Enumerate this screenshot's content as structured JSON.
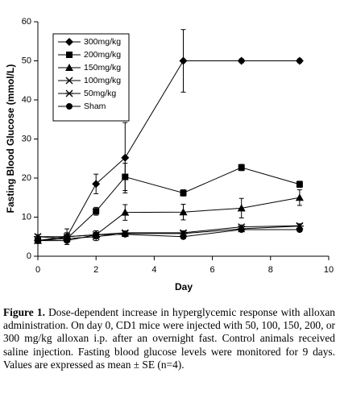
{
  "chart_data": {
    "type": "line",
    "ylabel": "Fasting Blood Glucose (mmol/L)",
    "xlabel": "Day",
    "x": [
      0,
      1,
      2,
      3,
      5,
      7,
      9
    ],
    "xlim": [
      0,
      10
    ],
    "xticks": [
      0,
      2,
      4,
      6,
      8,
      10
    ],
    "ylim": [
      0,
      60
    ],
    "yticks": [
      0,
      10,
      20,
      30,
      40,
      50,
      60
    ],
    "legend": "top-left",
    "series": [
      {
        "name": "300mg/kg",
        "color": "#000000",
        "marker": "diamond",
        "values": [
          4,
          5,
          18.5,
          25.2,
          50,
          50,
          50
        ],
        "errors": [
          0.5,
          1,
          2.5,
          9,
          8,
          0.5,
          0.5
        ]
      },
      {
        "name": "200mg/kg",
        "color": "#000000",
        "marker": "square",
        "values": [
          4,
          4.5,
          11.5,
          20.3,
          16.2,
          22.7,
          18.4
        ],
        "errors": [
          0.5,
          1,
          1,
          3.5,
          0.8,
          0.8,
          0.8
        ]
      },
      {
        "name": "150mg/kg",
        "color": "#000000",
        "marker": "triangle",
        "values": [
          4,
          5,
          5.5,
          11.2,
          11.3,
          12.3,
          15
        ],
        "errors": [
          0.5,
          2,
          1,
          2,
          2,
          2.5,
          2
        ]
      },
      {
        "name": "100mg/kg",
        "color": "#000000",
        "marker": "x",
        "values": [
          5,
          5,
          5.5,
          6,
          6,
          7.5,
          7.8
        ],
        "errors": [
          0.5,
          1,
          1,
          0.5,
          0.5,
          0.5,
          0.5
        ]
      },
      {
        "name": "50mg/kg",
        "color": "#000000",
        "marker": "star",
        "values": [
          5,
          4.5,
          5,
          5.8,
          5.8,
          7,
          7.7
        ],
        "errors": [
          0.5,
          1,
          1,
          0.5,
          0.5,
          0.5,
          0.5
        ]
      },
      {
        "name": "Sham",
        "color": "#000000",
        "marker": "circle",
        "values": [
          4,
          4,
          5.5,
          5.6,
          5,
          6.8,
          6.8
        ],
        "errors": [
          0.5,
          1,
          0.5,
          0.5,
          0.5,
          0.5,
          0.5
        ]
      }
    ]
  },
  "caption": {
    "label": "Figure 1.",
    "text": "Dose-dependent increase in hyperglycemic response with alloxan administration. On day 0, CD1 mice were injected with 50, 100, 150, 200, or 300 mg/kg alloxan i.p. after an overnight fast. Control animals received saline injection. Fasting blood glucose levels were monitored for 9 days. Values are expressed as mean ± SE (n=4)."
  }
}
